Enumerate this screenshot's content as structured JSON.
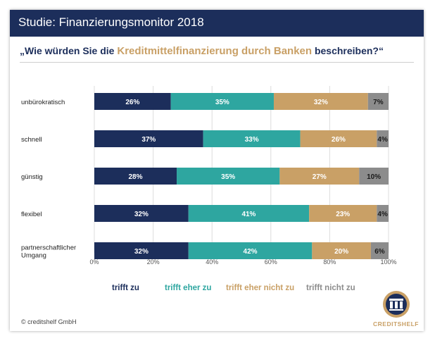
{
  "title": "Studie: Finanzierungsmonitor 2018",
  "question": {
    "prefix": "„Wie würden Sie die ",
    "highlight": "Kreditmittelfinanzierung durch Banken",
    "suffix": " beschreiben?“"
  },
  "colors": {
    "title_bg": "#1c2e5b",
    "trifft_zu": "#1c2e5b",
    "trifft_eher_zu": "#2ea6a0",
    "trifft_eher_nicht_zu": "#c9a066",
    "trifft_nicht_zu": "#8c8c8c",
    "accent": "#c9a066"
  },
  "chart_data": {
    "type": "bar",
    "orientation": "horizontal",
    "stacked": true,
    "categories": [
      [
        "unbürokratisch"
      ],
      [
        "schnell"
      ],
      [
        "günstig"
      ],
      [
        "flexibel"
      ],
      [
        "partnerschaftlicher",
        "Umgang"
      ]
    ],
    "series": [
      {
        "name": "trifft zu",
        "values": [
          26,
          37,
          28,
          32,
          32
        ],
        "labels": [
          "26%",
          "37%",
          "28%",
          "32%",
          "32%"
        ]
      },
      {
        "name": "trifft eher zu",
        "values": [
          35,
          33,
          35,
          41,
          42
        ],
        "labels": [
          "35%",
          "33%",
          "35%",
          "41%",
          "42%"
        ]
      },
      {
        "name": "trifft eher nicht zu",
        "values": [
          32,
          26,
          27,
          23,
          20
        ],
        "labels": [
          "32%",
          "26%",
          "27%",
          "23%",
          "20%"
        ]
      },
      {
        "name": "trifft nicht zu",
        "values": [
          7,
          4,
          10,
          4,
          6
        ],
        "labels": [
          "7%",
          "4%",
          "10%",
          "4%",
          "6%"
        ]
      }
    ],
    "xlim": [
      0,
      100
    ],
    "x_ticks": [
      "0%",
      "20%",
      "40%",
      "60%",
      "80%",
      "100%"
    ],
    "grid": true,
    "legend_position": "bottom"
  },
  "footer": {
    "copyright": "© creditshelf GmbH",
    "logo_icon": "creditshelf-logo-icon",
    "logo_text": "CREDITSHELF"
  }
}
